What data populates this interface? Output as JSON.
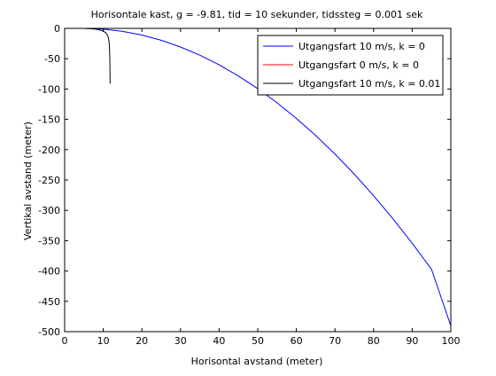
{
  "chart_data": {
    "type": "line",
    "title": "Horisontale kast, g = -9.81, tid = 10 sekunder, tidssteg = 0.001 sek",
    "xlabel": "Horisontal avstand (meter)",
    "ylabel": "Vertikal avstand (meter)",
    "xlim": [
      0,
      100
    ],
    "ylim": [
      -500,
      0
    ],
    "xticks": [
      0,
      10,
      20,
      30,
      40,
      50,
      60,
      70,
      80,
      90,
      100
    ],
    "yticks": [
      0,
      -50,
      -100,
      -150,
      -200,
      -250,
      -300,
      -350,
      -400,
      -450,
      -500
    ],
    "grid": false,
    "legend_position": "top-right",
    "series": [
      {
        "name": "Utgangsfart 10 m/s, k = 0",
        "color": "#0000ff",
        "x": [
          5,
          10,
          15,
          20,
          25,
          30,
          35,
          40,
          45,
          50,
          55,
          60,
          65,
          70,
          75,
          80,
          85,
          90,
          95,
          100
        ],
        "y": [
          0,
          -1.2,
          -4.9,
          -11.0,
          -19.6,
          -30.7,
          -44.1,
          -60.1,
          -78.5,
          -99.3,
          -122.6,
          -148.4,
          -176.6,
          -207.2,
          -240.3,
          -275.9,
          -313.9,
          -354.3,
          -397.2,
          -490.5
        ]
      },
      {
        "name": "Utgangsfart 0 m/s, k = 0",
        "color": "#ff0000",
        "x": [],
        "y": []
      },
      {
        "name": "Utgangsfart 10 m/s, k = 0.01",
        "color": "#000000",
        "x": [
          5,
          6.5,
          8,
          9,
          10,
          10.6,
          11.0,
          11.3,
          11.5,
          11.6,
          11.65,
          11.7,
          11.72,
          11.74,
          11.75,
          11.76,
          11.77
        ],
        "y": [
          0,
          -0.3,
          -1.2,
          -2.5,
          -4.5,
          -7,
          -10,
          -15,
          -22,
          -30,
          -40,
          -50,
          -60,
          -70,
          -78,
          -85,
          -91
        ]
      }
    ]
  }
}
